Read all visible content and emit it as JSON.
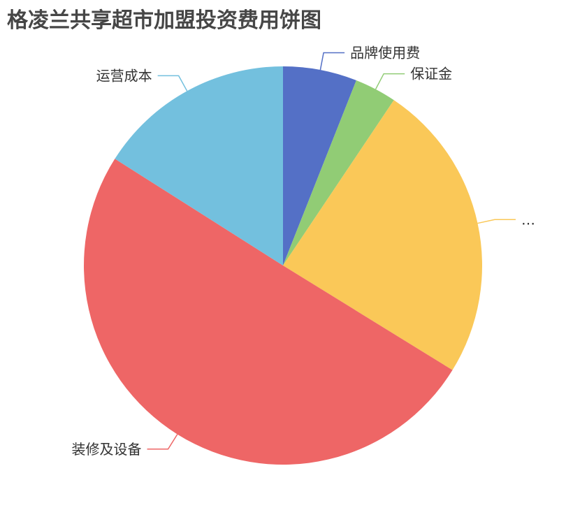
{
  "chart_data": {
    "type": "pie",
    "title": "格凌兰共享超市加盟投资费用饼图",
    "start_angle": "top, clockwise",
    "legend": "none",
    "slices": [
      {
        "label": "品牌使用费",
        "value": 6.0,
        "color": "#5470c6"
      },
      {
        "label": "保证金",
        "value": 3.4,
        "color": "#91cc75"
      },
      {
        "label": "…",
        "value": 24.4,
        "color": "#fac858"
      },
      {
        "label": "装修及设备",
        "value": 50.2,
        "color": "#ee6666"
      },
      {
        "label": "运营成本",
        "value": 16.0,
        "color": "#73c0de"
      }
    ]
  }
}
